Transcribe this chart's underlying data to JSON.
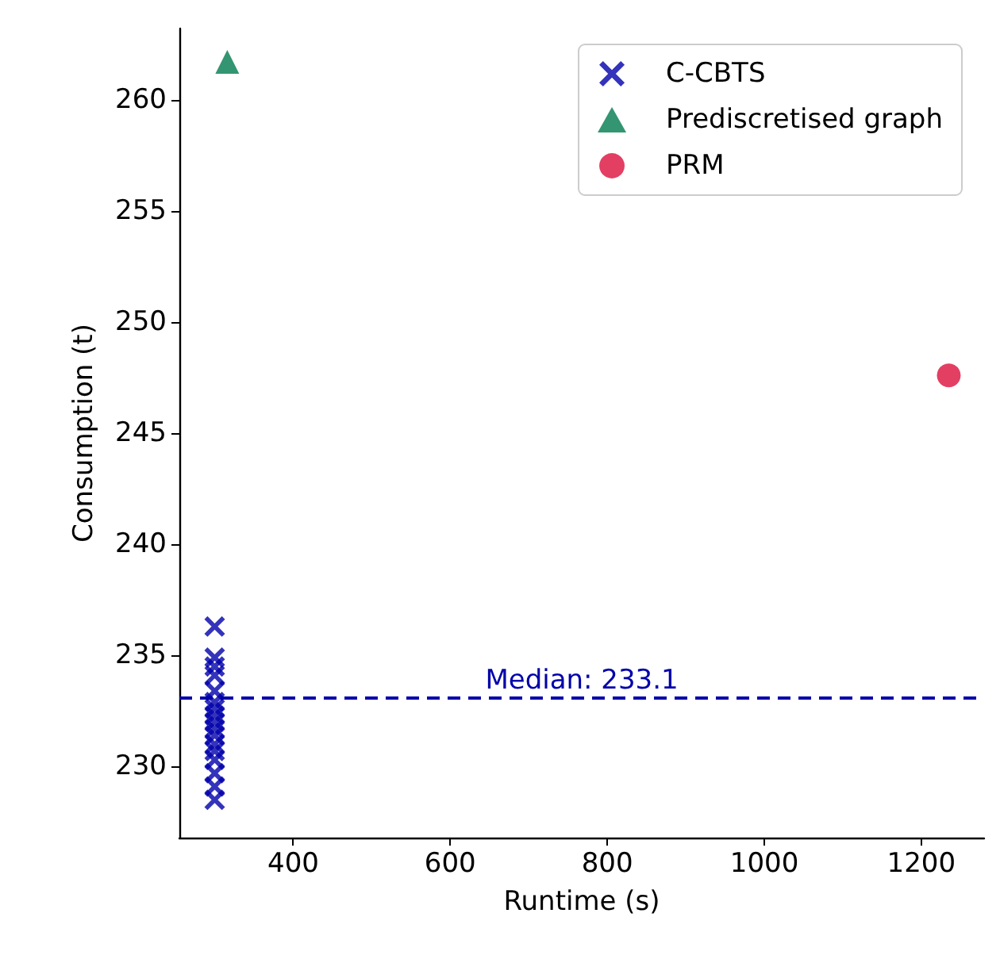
{
  "chart_data": {
    "type": "scatter",
    "xlabel": "Runtime (s)",
    "ylabel": "Consumption (t)",
    "series": [
      {
        "name": "C-CBTS",
        "color": "#0000aa",
        "marker": "cross",
        "x": [
          300,
          300,
          300,
          300,
          300,
          300,
          300,
          300,
          300,
          300,
          300,
          300,
          300,
          300,
          300,
          300,
          300
        ],
        "values": [
          236.3,
          234.9,
          234.5,
          234.1,
          233.4,
          232.9,
          232.6,
          232.3,
          232.0,
          231.7,
          231.4,
          231.0,
          230.7,
          230.3,
          229.7,
          229.1,
          228.5
        ]
      },
      {
        "name": "Prediscretised graph",
        "color": "#007a4d",
        "marker": "triangle",
        "x": [
          316
        ],
        "values": [
          261.7
        ]
      },
      {
        "name": "PRM",
        "color": "#dc0f3c",
        "marker": "circle",
        "x": [
          1235
        ],
        "values": [
          247.6
        ]
      }
    ],
    "ref_lines": [
      {
        "axis": "y",
        "value": 233.1,
        "label": "Median: 233.1",
        "color": "#0000aa",
        "line_style": "dashed"
      }
    ],
    "xlim": [
      255,
      1280
    ],
    "xticks": [
      400,
      600,
      800,
      1000,
      1200
    ],
    "ylim": [
      226.8,
      263.2
    ],
    "yticks": [
      230,
      235,
      240,
      245,
      250,
      255,
      260
    ],
    "grid": false,
    "legend": "top right"
  }
}
